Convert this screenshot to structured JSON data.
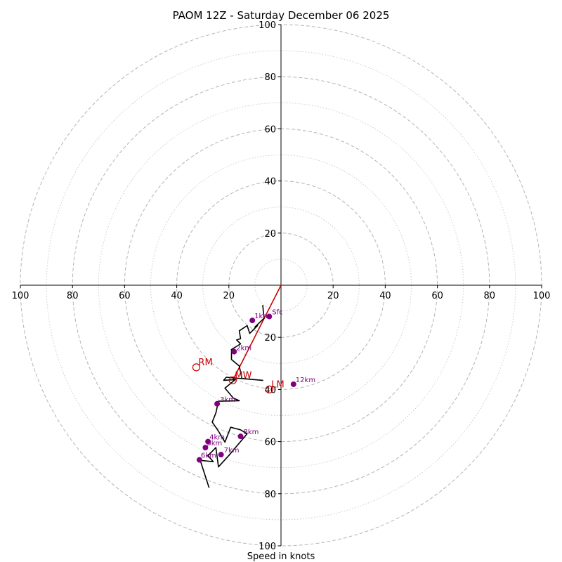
{
  "chart_data": {
    "type": "hodograph",
    "title": "PAOM 12Z - Saturday December 06 2025",
    "xlabel": "Speed in knots",
    "range": [
      -100,
      100
    ],
    "major_rings": [
      20,
      40,
      60,
      80,
      100
    ],
    "minor_rings": [
      10,
      30,
      50,
      70,
      90
    ],
    "x_ticks": [
      -100,
      -80,
      -60,
      -40,
      -20,
      20,
      40,
      60,
      80,
      100
    ],
    "x_tick_labels": [
      "100",
      "80",
      "60",
      "40",
      "20",
      "20",
      "40",
      "60",
      "80",
      "100"
    ],
    "y_ticks": [
      100,
      80,
      60,
      40,
      20,
      -20,
      -40,
      -60,
      -80,
      -100
    ],
    "y_tick_labels": [
      "100",
      "80",
      "60",
      "40",
      "20",
      "20",
      "40",
      "60",
      "80",
      "100"
    ],
    "hodograph_u": [
      -7,
      -6.5,
      -10,
      -9,
      -12,
      -13,
      -16,
      -15.5,
      -17,
      -15.5,
      -19,
      -19,
      -16,
      -15,
      -7,
      -21,
      -22,
      -17.5,
      -21.5,
      -18.3,
      -16,
      -24,
      -25,
      -26.4,
      -24,
      -21.5,
      -19.3,
      -15.5,
      -13,
      -20,
      -24,
      -25,
      -28,
      -26,
      -31,
      -27.6
    ],
    "hodograph_v": [
      -7.6,
      -12.7,
      -16,
      -15.5,
      -18.5,
      -15.5,
      -17.5,
      -20.5,
      -21,
      -22.5,
      -24.7,
      -28.5,
      -31,
      -35.8,
      -36.5,
      -35.3,
      -36.5,
      -36.2,
      -39.5,
      -43.3,
      -44.3,
      -44.5,
      -49,
      -52.5,
      -56,
      -60.2,
      -54.5,
      -55.5,
      -57,
      -65.3,
      -69.7,
      -62.3,
      -65.4,
      -67.7,
      -67.2,
      -77.7
    ],
    "height_markers": [
      {
        "label": "Sfc",
        "u": -4.5,
        "v": -12,
        "dx": 4,
        "dy": -3
      },
      {
        "label": "1km",
        "u": -11,
        "v": -13.5,
        "dx": 3,
        "dy": -3
      },
      {
        "label": "2km",
        "u": -18,
        "v": -25.5,
        "dx": 3,
        "dy": -2
      },
      {
        "label": "3km",
        "u": -24.5,
        "v": -45.5,
        "dx": 4,
        "dy": -3
      },
      {
        "label": "4km",
        "u": -28,
        "v": -60,
        "dx": 2,
        "dy": -3
      },
      {
        "label": "5km",
        "u": -29,
        "v": -62.3,
        "dx": 2,
        "dy": -3
      },
      {
        "label": "6km",
        "u": -31.3,
        "v": -67,
        "dx": 2,
        "dy": -3
      },
      {
        "label": "7km",
        "u": -23,
        "v": -65,
        "dx": 4,
        "dy": -3
      },
      {
        "label": "8km",
        "u": -15.5,
        "v": -58,
        "dx": 4,
        "dy": -3
      },
      {
        "label": "12km",
        "u": 4.8,
        "v": -38,
        "dx": 3,
        "dy": -3
      }
    ],
    "storm_motion": [
      {
        "label": "RM",
        "u": -32.5,
        "v": -31.5
      },
      {
        "label": "LM",
        "u": -4.5,
        "v": -40
      },
      {
        "label": "MW",
        "u": -18.5,
        "v": -36.5
      }
    ],
    "shear_line": [
      [
        0,
        0
      ],
      [
        -18.5,
        -36.5
      ]
    ],
    "colors": {
      "trace": "#000000",
      "markers": "#800080",
      "storm": "#cc0000",
      "ring_major": "#b4b4b4",
      "ring_minor": "#cccccc"
    }
  }
}
